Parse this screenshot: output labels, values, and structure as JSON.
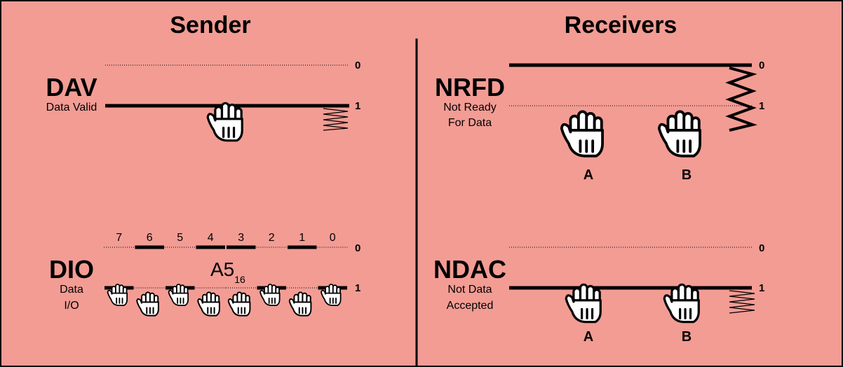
{
  "headers": {
    "sender": "Sender",
    "receivers": "Receivers"
  },
  "levels": {
    "zero": "0",
    "one": "1"
  },
  "dav": {
    "name": "DAV",
    "desc": "Data Valid",
    "level": 1
  },
  "dio": {
    "name": "DIO",
    "desc_line1": "Data",
    "desc_line2": "I/O",
    "value": "A5",
    "base": "16",
    "bits": [
      {
        "label": "7",
        "level": 1
      },
      {
        "label": "6",
        "level": 0
      },
      {
        "label": "5",
        "level": 1
      },
      {
        "label": "4",
        "level": 0
      },
      {
        "label": "3",
        "level": 0
      },
      {
        "label": "2",
        "level": 1
      },
      {
        "label": "1",
        "level": 0
      },
      {
        "label": "0",
        "level": 1
      }
    ]
  },
  "nrfd": {
    "name": "NRFD",
    "desc_line1": "Not Ready",
    "desc_line2": "For Data",
    "level": 0
  },
  "ndac": {
    "name": "NDAC",
    "desc_line1": "Not Data",
    "desc_line2": "Accepted",
    "level": 1
  },
  "receivers": [
    "A",
    "B"
  ],
  "colors": {
    "background": "#f29c94",
    "line": "#000000",
    "glove": "#ffffff"
  }
}
